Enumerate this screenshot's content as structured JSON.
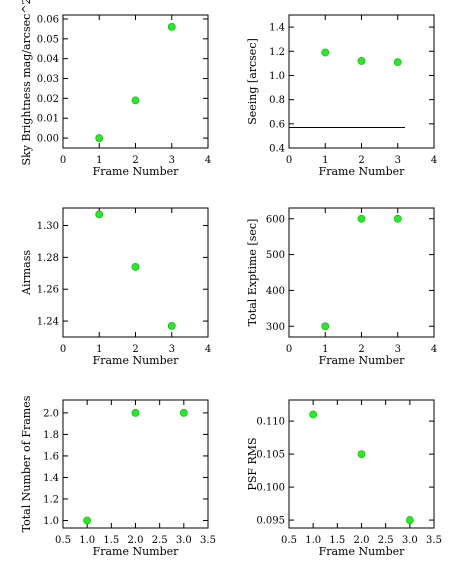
{
  "chart_data": [
    {
      "type": "scatter",
      "xlabel": "Frame Number",
      "ylabel": "Sky Brightness mag/arcsec^2",
      "xlim": [
        0,
        4
      ],
      "ylim": [
        -0.005,
        0.062
      ],
      "xticks": [
        0,
        1,
        2,
        3,
        4
      ],
      "xtick_labels": [
        "0",
        "1",
        "2",
        "3",
        "4"
      ],
      "yticks": [
        0.0,
        0.01,
        0.02,
        0.03,
        0.04,
        0.05,
        0.06
      ],
      "ytick_labels": [
        "0.00",
        "0.01",
        "0.02",
        "0.03",
        "0.04",
        "0.05",
        "0.06"
      ],
      "x": [
        1,
        2,
        3
      ],
      "y": [
        0.0,
        0.019,
        0.056
      ],
      "point_color": "#22ee22",
      "grid": false
    },
    {
      "type": "scatter",
      "xlabel": "Frame Number",
      "ylabel": "Seeing [arcsec]",
      "xlim": [
        0,
        4
      ],
      "ylim": [
        0.4,
        1.5
      ],
      "xticks": [
        0,
        1,
        2,
        3,
        4
      ],
      "xtick_labels": [
        "0",
        "1",
        "2",
        "3",
        "4"
      ],
      "yticks": [
        0.4,
        0.6,
        0.8,
        1.0,
        1.2,
        1.4
      ],
      "ytick_labels": [
        "0.4",
        "0.6",
        "0.8",
        "1.0",
        "1.2",
        "1.4"
      ],
      "x": [
        1,
        2,
        3
      ],
      "y": [
        1.19,
        1.12,
        1.11
      ],
      "reference_line": {
        "y": 0.57,
        "x_start": 0,
        "x_end": 3.2
      },
      "point_color": "#22ee22",
      "grid": false
    },
    {
      "type": "scatter",
      "xlabel": "Frame Number",
      "ylabel": "Airmass",
      "xlim": [
        0,
        4
      ],
      "ylim": [
        1.23,
        1.311
      ],
      "xticks": [
        0,
        1,
        2,
        3,
        4
      ],
      "xtick_labels": [
        "0",
        "1",
        "2",
        "3",
        "4"
      ],
      "yticks": [
        1.24,
        1.26,
        1.28,
        1.3
      ],
      "ytick_labels": [
        "1.24",
        "1.26",
        "1.28",
        "1.30"
      ],
      "x": [
        1,
        2,
        3
      ],
      "y": [
        1.307,
        1.274,
        1.237
      ],
      "point_color": "#22ee22",
      "grid": false
    },
    {
      "type": "scatter",
      "xlabel": "Frame Number",
      "ylabel": "Total Exptime [sec]",
      "xlim": [
        0,
        4
      ],
      "ylim": [
        270,
        630
      ],
      "xticks": [
        0,
        1,
        2,
        3,
        4
      ],
      "xtick_labels": [
        "0",
        "1",
        "2",
        "3",
        "4"
      ],
      "yticks": [
        300,
        400,
        500,
        600
      ],
      "ytick_labels": [
        "300",
        "400",
        "500",
        "600"
      ],
      "x": [
        1,
        2,
        3
      ],
      "y": [
        300,
        600,
        600
      ],
      "point_color": "#22ee22",
      "grid": false
    },
    {
      "type": "scatter",
      "xlabel": "Frame Number",
      "ylabel": "Total Number of Frames",
      "xlim": [
        0.5,
        3.5
      ],
      "ylim": [
        0.93,
        2.12
      ],
      "xticks": [
        0.5,
        1.0,
        1.5,
        2.0,
        2.5,
        3.0,
        3.5
      ],
      "xtick_labels": [
        "0.5",
        "1.0",
        "1.5",
        "2.0",
        "2.5",
        "3.0",
        "3.5"
      ],
      "yticks": [
        1.0,
        1.2,
        1.4,
        1.6,
        1.8,
        2.0
      ],
      "ytick_labels": [
        "1.0",
        "1.2",
        "1.4",
        "1.6",
        "1.8",
        "2.0"
      ],
      "x": [
        1,
        2,
        3
      ],
      "y": [
        1.0,
        2.0,
        2.0
      ],
      "point_color": "#22ee22",
      "grid": false
    },
    {
      "type": "scatter",
      "xlabel": "Frame Number",
      "ylabel": "PSF RMS",
      "xlim": [
        0.5,
        3.5
      ],
      "ylim": [
        0.0938,
        0.1132
      ],
      "xticks": [
        0.5,
        1.0,
        1.5,
        2.0,
        2.5,
        3.0,
        3.5
      ],
      "xtick_labels": [
        "0.5",
        "1.0",
        "1.5",
        "2.0",
        "2.5",
        "3.0",
        "3.5"
      ],
      "yticks": [
        0.095,
        0.1,
        0.105,
        0.11
      ],
      "ytick_labels": [
        "0.095",
        "0.100",
        "0.105",
        "0.110"
      ],
      "x": [
        1,
        2,
        3
      ],
      "y": [
        0.111,
        0.105,
        0.095
      ],
      "point_color": "#22ee22",
      "grid": false
    }
  ]
}
